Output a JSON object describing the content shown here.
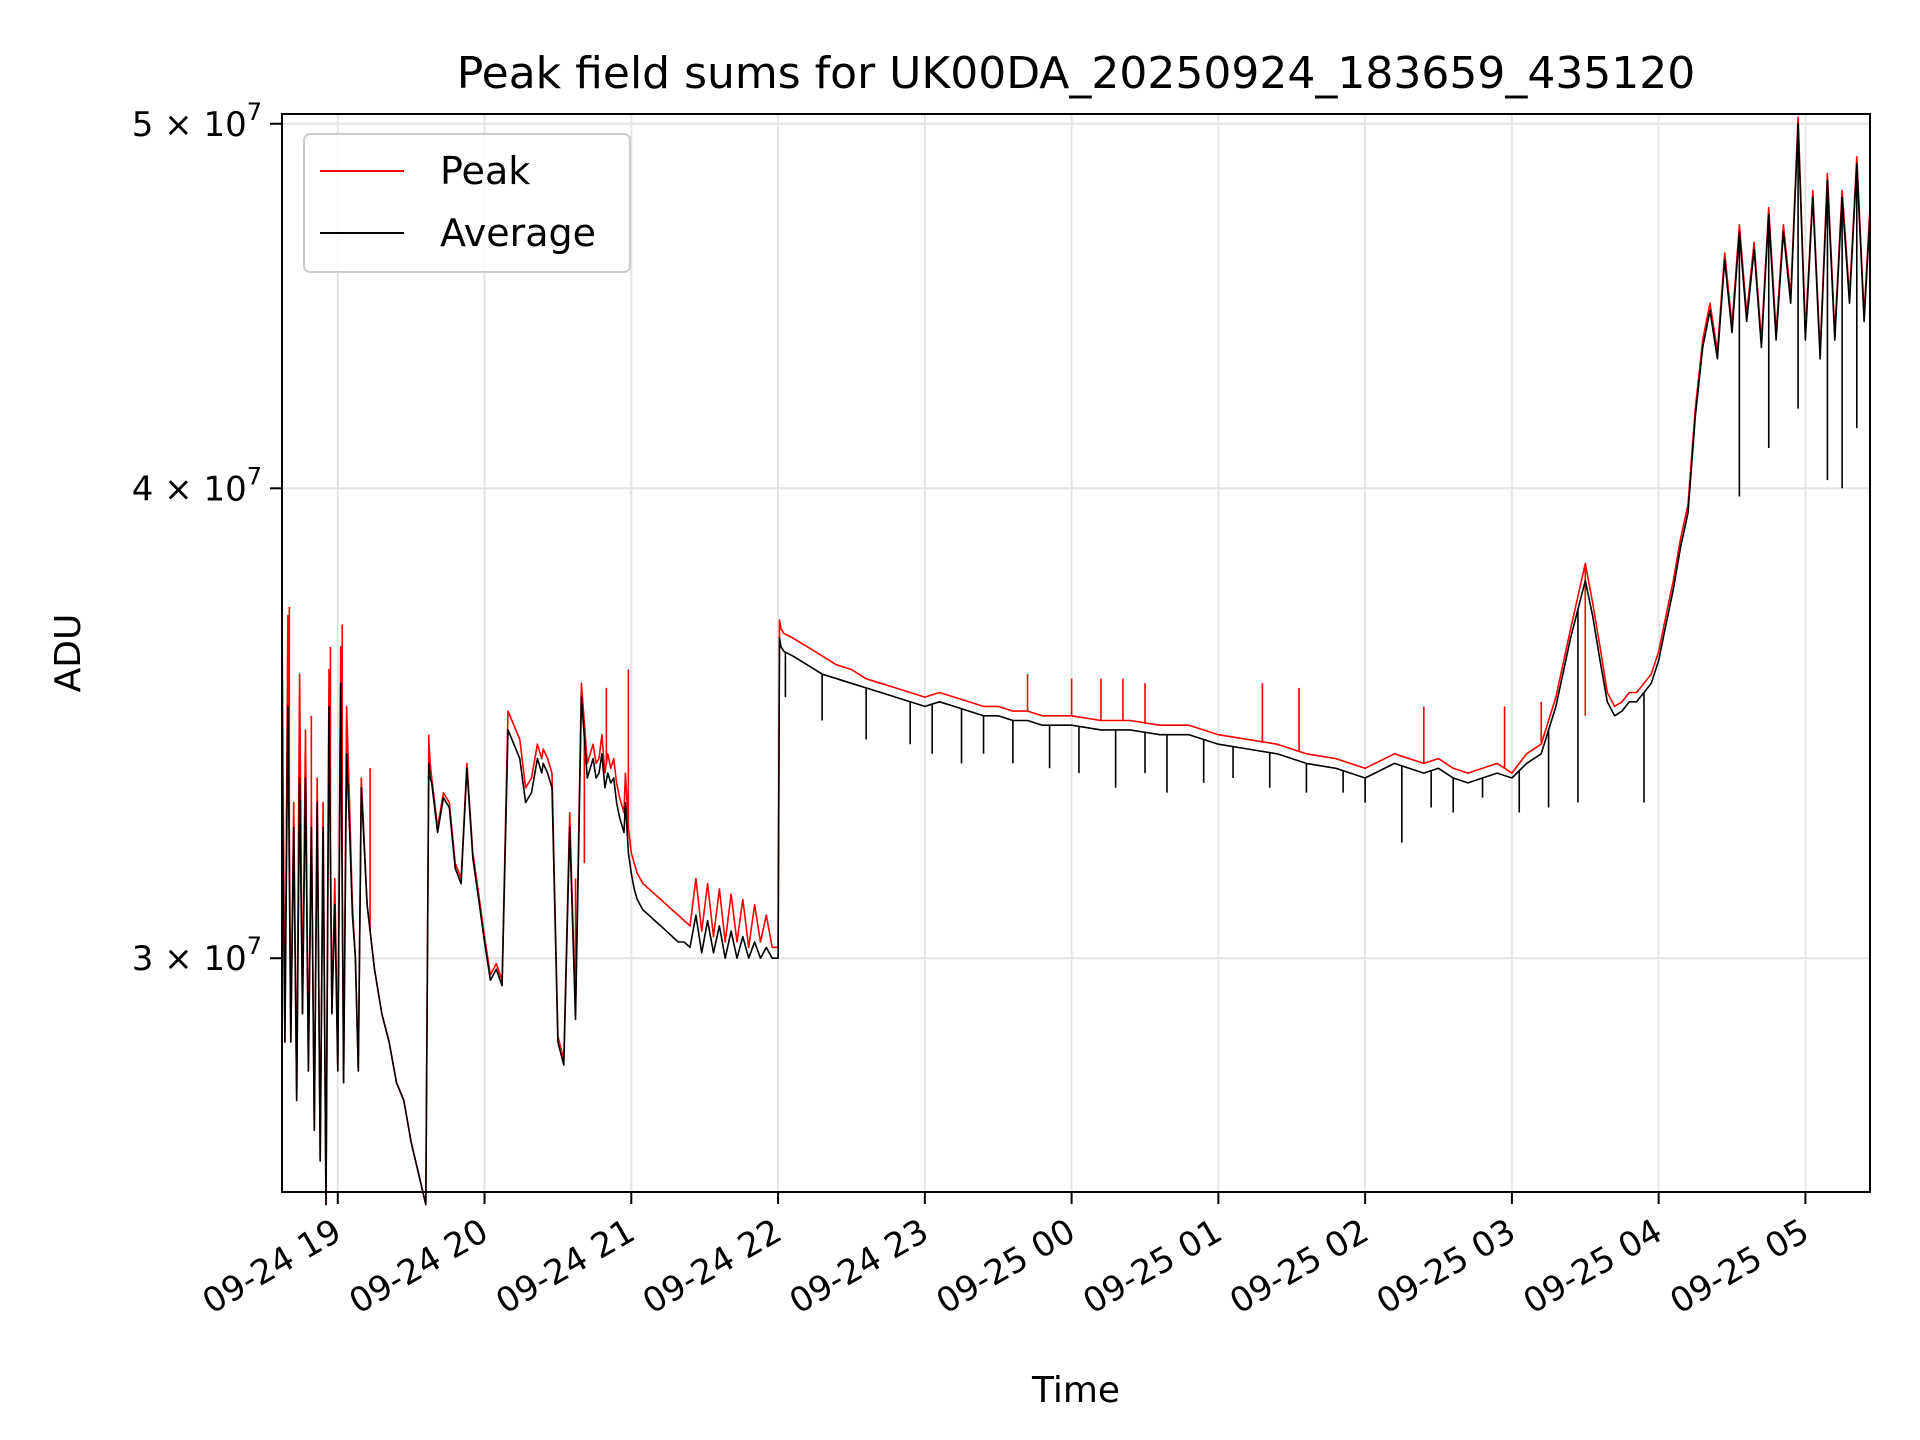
{
  "chart_data": {
    "type": "line",
    "title": "Peak field sums for UK00DA_20250924_183659_435120",
    "xlabel": "Time",
    "ylabel": "ADU",
    "grid": true,
    "legend_position": "top-left",
    "x_range_hours": [
      -0.38,
      10.44
    ],
    "ylim": [
      26000000,
      50300000
    ],
    "x_ticks": [
      {
        "hour": 0,
        "label": "09-24 19"
      },
      {
        "hour": 1,
        "label": "09-24 20"
      },
      {
        "hour": 2,
        "label": "09-24 21"
      },
      {
        "hour": 3,
        "label": "09-24 22"
      },
      {
        "hour": 4,
        "label": "09-24 23"
      },
      {
        "hour": 5,
        "label": "09-25 00"
      },
      {
        "hour": 6,
        "label": "09-25 01"
      },
      {
        "hour": 7,
        "label": "09-25 02"
      },
      {
        "hour": 8,
        "label": "09-25 03"
      },
      {
        "hour": 9,
        "label": "09-25 04"
      },
      {
        "hour": 10,
        "label": "09-25 05"
      }
    ],
    "y_ticks": [
      {
        "value": 30000000,
        "base": "3 × 10",
        "exp": "7"
      },
      {
        "value": 40000000,
        "base": "4 × 10",
        "exp": "7"
      },
      {
        "value": 50000000,
        "base": "5 × 10",
        "exp": "7"
      }
    ],
    "series": [
      {
        "name": "Peak",
        "color": "#ff0000",
        "x_hours": [
          -0.38,
          -0.36,
          -0.34,
          -0.32,
          -0.3,
          -0.28,
          -0.26,
          -0.24,
          -0.22,
          -0.2,
          -0.18,
          -0.16,
          -0.14,
          -0.12,
          -0.1,
          -0.08,
          -0.06,
          -0.04,
          -0.02,
          0.0,
          0.02,
          0.04,
          0.06,
          0.08,
          0.1,
          0.12,
          0.14,
          0.16,
          0.2,
          0.25,
          0.3,
          0.35,
          0.4,
          0.45,
          0.5,
          0.55,
          0.6,
          0.62,
          0.63,
          0.64,
          0.68,
          0.72,
          0.76,
          0.8,
          0.84,
          0.88,
          0.92,
          0.96,
          1.0,
          1.04,
          1.08,
          1.12,
          1.16,
          1.2,
          1.24,
          1.28,
          1.32,
          1.36,
          1.38,
          1.39,
          1.4,
          1.43,
          1.46,
          1.5,
          1.54,
          1.58,
          1.62,
          1.66,
          1.7,
          1.74,
          1.76,
          1.78,
          1.8,
          1.82,
          1.84,
          1.86,
          1.88,
          1.9,
          1.92,
          1.95,
          1.96,
          1.98,
          2.0,
          2.02,
          2.04,
          2.06,
          2.08,
          2.12,
          2.16,
          2.2,
          2.24,
          2.28,
          2.32,
          2.36,
          2.4,
          2.44,
          2.48,
          2.52,
          2.56,
          2.6,
          2.64,
          2.68,
          2.72,
          2.76,
          2.8,
          2.84,
          2.88,
          2.92,
          2.96,
          3.0,
          3.01,
          3.02,
          3.04,
          3.1,
          3.2,
          3.3,
          3.4,
          3.5,
          3.6,
          3.7,
          3.8,
          3.9,
          4.0,
          4.1,
          4.2,
          4.3,
          4.4,
          4.5,
          4.6,
          4.7,
          4.8,
          4.9,
          5.0,
          5.2,
          5.4,
          5.6,
          5.8,
          6.0,
          6.2,
          6.4,
          6.6,
          6.8,
          7.0,
          7.2,
          7.4,
          7.5,
          7.6,
          7.7,
          7.8,
          7.9,
          8.0,
          8.1,
          8.2,
          8.3,
          8.4,
          8.5,
          8.55,
          8.6,
          8.65,
          8.7,
          8.75,
          8.8,
          8.85,
          8.9,
          8.95,
          9.0,
          9.05,
          9.1,
          9.15,
          9.2,
          9.25,
          9.3,
          9.35,
          9.4,
          9.45,
          9.5,
          9.55,
          9.6,
          9.65,
          9.7,
          9.75,
          9.8,
          9.85,
          9.9,
          9.95,
          10.0,
          10.05,
          10.1,
          10.15,
          10.2,
          10.25,
          10.3,
          10.35,
          10.4,
          10.44
        ],
        "y": [
          37200000,
          28500000,
          37000000,
          28500000,
          33000000,
          27500000,
          35700000,
          29000000,
          34500000,
          28000000,
          33000000,
          27000000,
          33500000,
          26500000,
          33000000,
          25800000,
          35800000,
          29000000,
          31500000,
          28000000,
          36300000,
          27800000,
          35000000,
          33000000,
          31000000,
          30000000,
          28000000,
          33500000,
          31000000,
          29800000,
          29000000,
          28500000,
          27800000,
          27500000,
          26800000,
          26300000,
          25800000,
          34300000,
          33800000,
          33500000,
          32500000,
          33200000,
          33000000,
          31800000,
          31500000,
          33800000,
          32000000,
          31200000,
          30400000,
          29700000,
          29900000,
          29600000,
          34900000,
          34600000,
          34300000,
          33300000,
          33500000,
          34200000,
          34000000,
          33900000,
          34100000,
          33900000,
          33600000,
          28600000,
          28200000,
          32800000,
          29000000,
          35500000,
          33800000,
          34200000,
          33800000,
          33900000,
          34400000,
          33600000,
          34000000,
          33700000,
          33900000,
          33400000,
          33100000,
          32800000,
          33600000,
          32500000,
          32000000,
          31800000,
          31600000,
          31500000,
          31400000,
          31300000,
          31200000,
          31100000,
          31000000,
          30900000,
          30800000,
          30700000,
          30600000,
          31500000,
          30500000,
          31400000,
          30400000,
          31300000,
          30300000,
          31200000,
          30300000,
          31100000,
          30200000,
          31000000,
          30300000,
          30800000,
          30200000,
          30200000,
          36900000,
          36700000,
          36600000,
          36500000,
          36300000,
          36100000,
          35900000,
          35800000,
          35600000,
          35500000,
          35400000,
          35300000,
          35200000,
          35300000,
          35200000,
          35100000,
          35000000,
          35000000,
          34900000,
          34900000,
          34800000,
          34800000,
          34800000,
          34700000,
          34700000,
          34600000,
          34600000,
          34400000,
          34300000,
          34200000,
          34000000,
          33900000,
          33700000,
          34000000,
          33800000,
          33900000,
          33700000,
          33600000,
          33700000,
          33800000,
          33600000,
          34000000,
          34200000,
          35200000,
          36700000,
          38200000,
          37300000,
          36300000,
          35300000,
          35000000,
          35100000,
          35300000,
          35300000,
          35500000,
          35700000,
          36200000,
          37000000,
          37800000,
          38800000,
          39600000,
          42000000,
          43800000,
          44800000,
          43500000,
          46200000,
          44200000,
          47000000,
          44500000,
          46500000,
          43800000,
          47500000,
          44000000,
          47000000,
          45000000,
          50200000,
          44000000,
          48000000,
          43500000,
          48500000,
          44000000,
          48000000,
          45000000,
          49000000,
          44500000,
          47500000
        ],
        "spikes": [
          [
            -0.33,
            37200000
          ],
          [
            -0.18,
            34800000
          ],
          [
            -0.05,
            36300000
          ],
          [
            0.03,
            36800000
          ],
          [
            0.22,
            33700000
          ],
          [
            0.62,
            34400000
          ],
          [
            1.62,
            31500000
          ],
          [
            1.68,
            31800000
          ],
          [
            1.83,
            35400000
          ],
          [
            1.98,
            35800000
          ],
          [
            4.7,
            35700000
          ],
          [
            5.0,
            35600000
          ],
          [
            5.2,
            35600000
          ],
          [
            5.35,
            35600000
          ],
          [
            5.5,
            35500000
          ],
          [
            6.3,
            35500000
          ],
          [
            6.55,
            35400000
          ],
          [
            7.4,
            35000000
          ],
          [
            7.95,
            35000000
          ],
          [
            8.5,
            34800000
          ],
          [
            8.2,
            35100000
          ]
        ],
        "dips": []
      },
      {
        "name": "Average",
        "color": "#000000",
        "x_hours": [
          -0.38,
          -0.36,
          -0.34,
          -0.32,
          -0.3,
          -0.28,
          -0.26,
          -0.24,
          -0.22,
          -0.2,
          -0.18,
          -0.16,
          -0.14,
          -0.12,
          -0.1,
          -0.08,
          -0.06,
          -0.04,
          -0.02,
          0.0,
          0.02,
          0.04,
          0.06,
          0.08,
          0.1,
          0.12,
          0.14,
          0.16,
          0.2,
          0.25,
          0.3,
          0.35,
          0.4,
          0.45,
          0.5,
          0.55,
          0.6,
          0.62,
          0.63,
          0.64,
          0.68,
          0.72,
          0.76,
          0.8,
          0.84,
          0.88,
          0.92,
          0.96,
          1.0,
          1.04,
          1.08,
          1.12,
          1.16,
          1.2,
          1.24,
          1.28,
          1.32,
          1.36,
          1.38,
          1.39,
          1.4,
          1.43,
          1.46,
          1.5,
          1.54,
          1.58,
          1.62,
          1.66,
          1.7,
          1.74,
          1.76,
          1.78,
          1.8,
          1.82,
          1.84,
          1.86,
          1.88,
          1.9,
          1.92,
          1.95,
          1.96,
          1.98,
          2.0,
          2.02,
          2.04,
          2.06,
          2.08,
          2.12,
          2.16,
          2.2,
          2.24,
          2.28,
          2.32,
          2.36,
          2.4,
          2.44,
          2.48,
          2.52,
          2.56,
          2.6,
          2.64,
          2.68,
          2.72,
          2.76,
          2.8,
          2.84,
          2.88,
          2.92,
          2.96,
          3.0,
          3.01,
          3.02,
          3.04,
          3.1,
          3.2,
          3.3,
          3.4,
          3.5,
          3.6,
          3.7,
          3.8,
          3.9,
          4.0,
          4.1,
          4.2,
          4.3,
          4.4,
          4.5,
          4.6,
          4.7,
          4.8,
          4.9,
          5.0,
          5.2,
          5.4,
          5.6,
          5.8,
          6.0,
          6.2,
          6.4,
          6.6,
          6.8,
          7.0,
          7.2,
          7.4,
          7.5,
          7.6,
          7.7,
          7.8,
          7.9,
          8.0,
          8.1,
          8.2,
          8.3,
          8.4,
          8.5,
          8.55,
          8.6,
          8.65,
          8.7,
          8.75,
          8.8,
          8.85,
          8.9,
          8.95,
          9.0,
          9.05,
          9.1,
          9.15,
          9.2,
          9.25,
          9.3,
          9.35,
          9.4,
          9.45,
          9.5,
          9.55,
          9.6,
          9.65,
          9.7,
          9.75,
          9.8,
          9.85,
          9.9,
          9.95,
          10.0,
          10.05,
          10.1,
          10.15,
          10.2,
          10.25,
          10.3,
          10.35,
          10.4,
          10.44
        ],
        "y": [
          34000000,
          28500000,
          35000000,
          28500000,
          32500000,
          27500000,
          33500000,
          29000000,
          33500000,
          28000000,
          32500000,
          27000000,
          33000000,
          26500000,
          32500000,
          25800000,
          35000000,
          29000000,
          31000000,
          28000000,
          35500000,
          27800000,
          34000000,
          32500000,
          30800000,
          30000000,
          28000000,
          33300000,
          31000000,
          29800000,
          29000000,
          28500000,
          27800000,
          27500000,
          26800000,
          26300000,
          25800000,
          33800000,
          33500000,
          33400000,
          32400000,
          33100000,
          32900000,
          31700000,
          31400000,
          33700000,
          31900000,
          31100000,
          30300000,
          29600000,
          29800000,
          29500000,
          34500000,
          34200000,
          33900000,
          33000000,
          33200000,
          33900000,
          33700000,
          33600000,
          33800000,
          33600000,
          33300000,
          28500000,
          28100000,
          32500000,
          28900000,
          35200000,
          33500000,
          33900000,
          33500000,
          33600000,
          34000000,
          33300000,
          33600000,
          33400000,
          33500000,
          33000000,
          32700000,
          32400000,
          33000000,
          32000000,
          31600000,
          31300000,
          31100000,
          31000000,
          30900000,
          30800000,
          30700000,
          30600000,
          30500000,
          30400000,
          30300000,
          30300000,
          30200000,
          30800000,
          30100000,
          30700000,
          30100000,
          30600000,
          30000000,
          30500000,
          30000000,
          30400000,
          30000000,
          30300000,
          30000000,
          30200000,
          30000000,
          30000000,
          36500000,
          36300000,
          36200000,
          36100000,
          35900000,
          35700000,
          35600000,
          35500000,
          35400000,
          35300000,
          35200000,
          35100000,
          35000000,
          35100000,
          35000000,
          34900000,
          34800000,
          34800000,
          34700000,
          34700000,
          34600000,
          34600000,
          34600000,
          34500000,
          34500000,
          34400000,
          34400000,
          34200000,
          34100000,
          34000000,
          33800000,
          33700000,
          33500000,
          33800000,
          33600000,
          33700000,
          33500000,
          33400000,
          33500000,
          33600000,
          33500000,
          33800000,
          34000000,
          35000000,
          36500000,
          37800000,
          37000000,
          36000000,
          35100000,
          34800000,
          34900000,
          35100000,
          35100000,
          35300000,
          35500000,
          36000000,
          36800000,
          37600000,
          38600000,
          39400000,
          41800000,
          43600000,
          44600000,
          43300000,
          46000000,
          44000000,
          46800000,
          44300000,
          46300000,
          43600000,
          47300000,
          43800000,
          46800000,
          44800000,
          50000000,
          43800000,
          47800000,
          43300000,
          48300000,
          43800000,
          47800000,
          44800000,
          48800000,
          44300000,
          47300000
        ],
        "spikes": [],
        "dips": [
          [
            3.05,
            35200000
          ],
          [
            3.3,
            34700000
          ],
          [
            3.6,
            34300000
          ],
          [
            3.9,
            34200000
          ],
          [
            4.05,
            34000000
          ],
          [
            4.25,
            33800000
          ],
          [
            4.4,
            34000000
          ],
          [
            4.6,
            33800000
          ],
          [
            4.85,
            33700000
          ],
          [
            5.05,
            33600000
          ],
          [
            5.3,
            33300000
          ],
          [
            5.5,
            33600000
          ],
          [
            5.65,
            33200000
          ],
          [
            5.9,
            33400000
          ],
          [
            6.1,
            33500000
          ],
          [
            6.35,
            33300000
          ],
          [
            6.6,
            33200000
          ],
          [
            6.85,
            33200000
          ],
          [
            7.0,
            33000000
          ],
          [
            7.25,
            32200000
          ],
          [
            7.45,
            32900000
          ],
          [
            7.6,
            32800000
          ],
          [
            7.8,
            33100000
          ],
          [
            8.05,
            32800000
          ],
          [
            8.25,
            32900000
          ],
          [
            8.45,
            33000000
          ],
          [
            8.9,
            33000000
          ],
          [
            9.55,
            39800000
          ],
          [
            9.75,
            41000000
          ],
          [
            9.95,
            42000000
          ],
          [
            10.15,
            40200000
          ],
          [
            10.25,
            40000000
          ],
          [
            10.35,
            41500000
          ]
        ]
      }
    ]
  }
}
